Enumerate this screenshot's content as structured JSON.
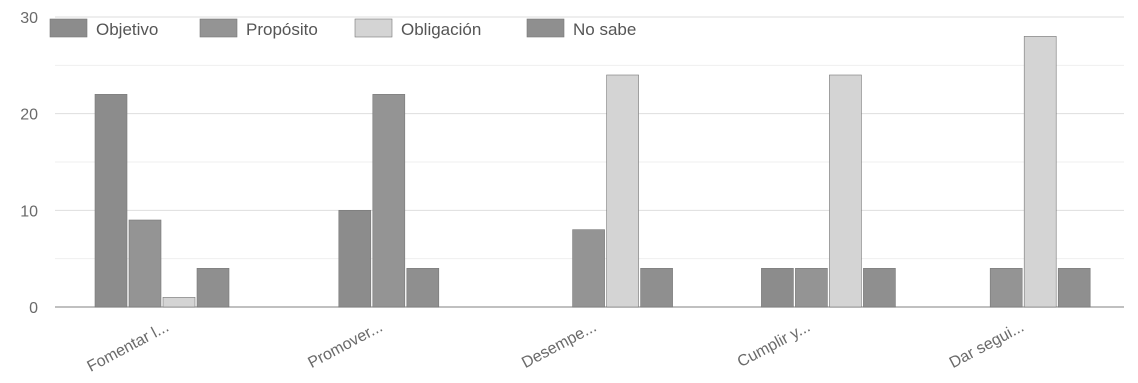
{
  "chart_data": {
    "type": "bar",
    "categories": [
      "Fomentar l...",
      "Promover...",
      "Desempe...",
      "Cumplir y...",
      "Dar segui..."
    ],
    "series": [
      {
        "name": "Objetivo",
        "values": [
          22,
          10,
          0,
          4,
          0
        ],
        "color": "#8c8c8c"
      },
      {
        "name": "Propósito",
        "values": [
          9,
          22,
          8,
          4,
          4
        ],
        "color": "#949494"
      },
      {
        "name": "Obligación",
        "values": [
          1,
          0,
          24,
          24,
          28
        ],
        "color": "#d4d4d4"
      },
      {
        "name": "No sabe",
        "values": [
          4,
          4,
          4,
          4,
          4
        ],
        "color": "#8f8f8f"
      }
    ],
    "yticks": [
      0,
      10,
      20,
      30
    ],
    "ylim": [
      0,
      30
    ],
    "grid": true,
    "legend": "top-left"
  }
}
